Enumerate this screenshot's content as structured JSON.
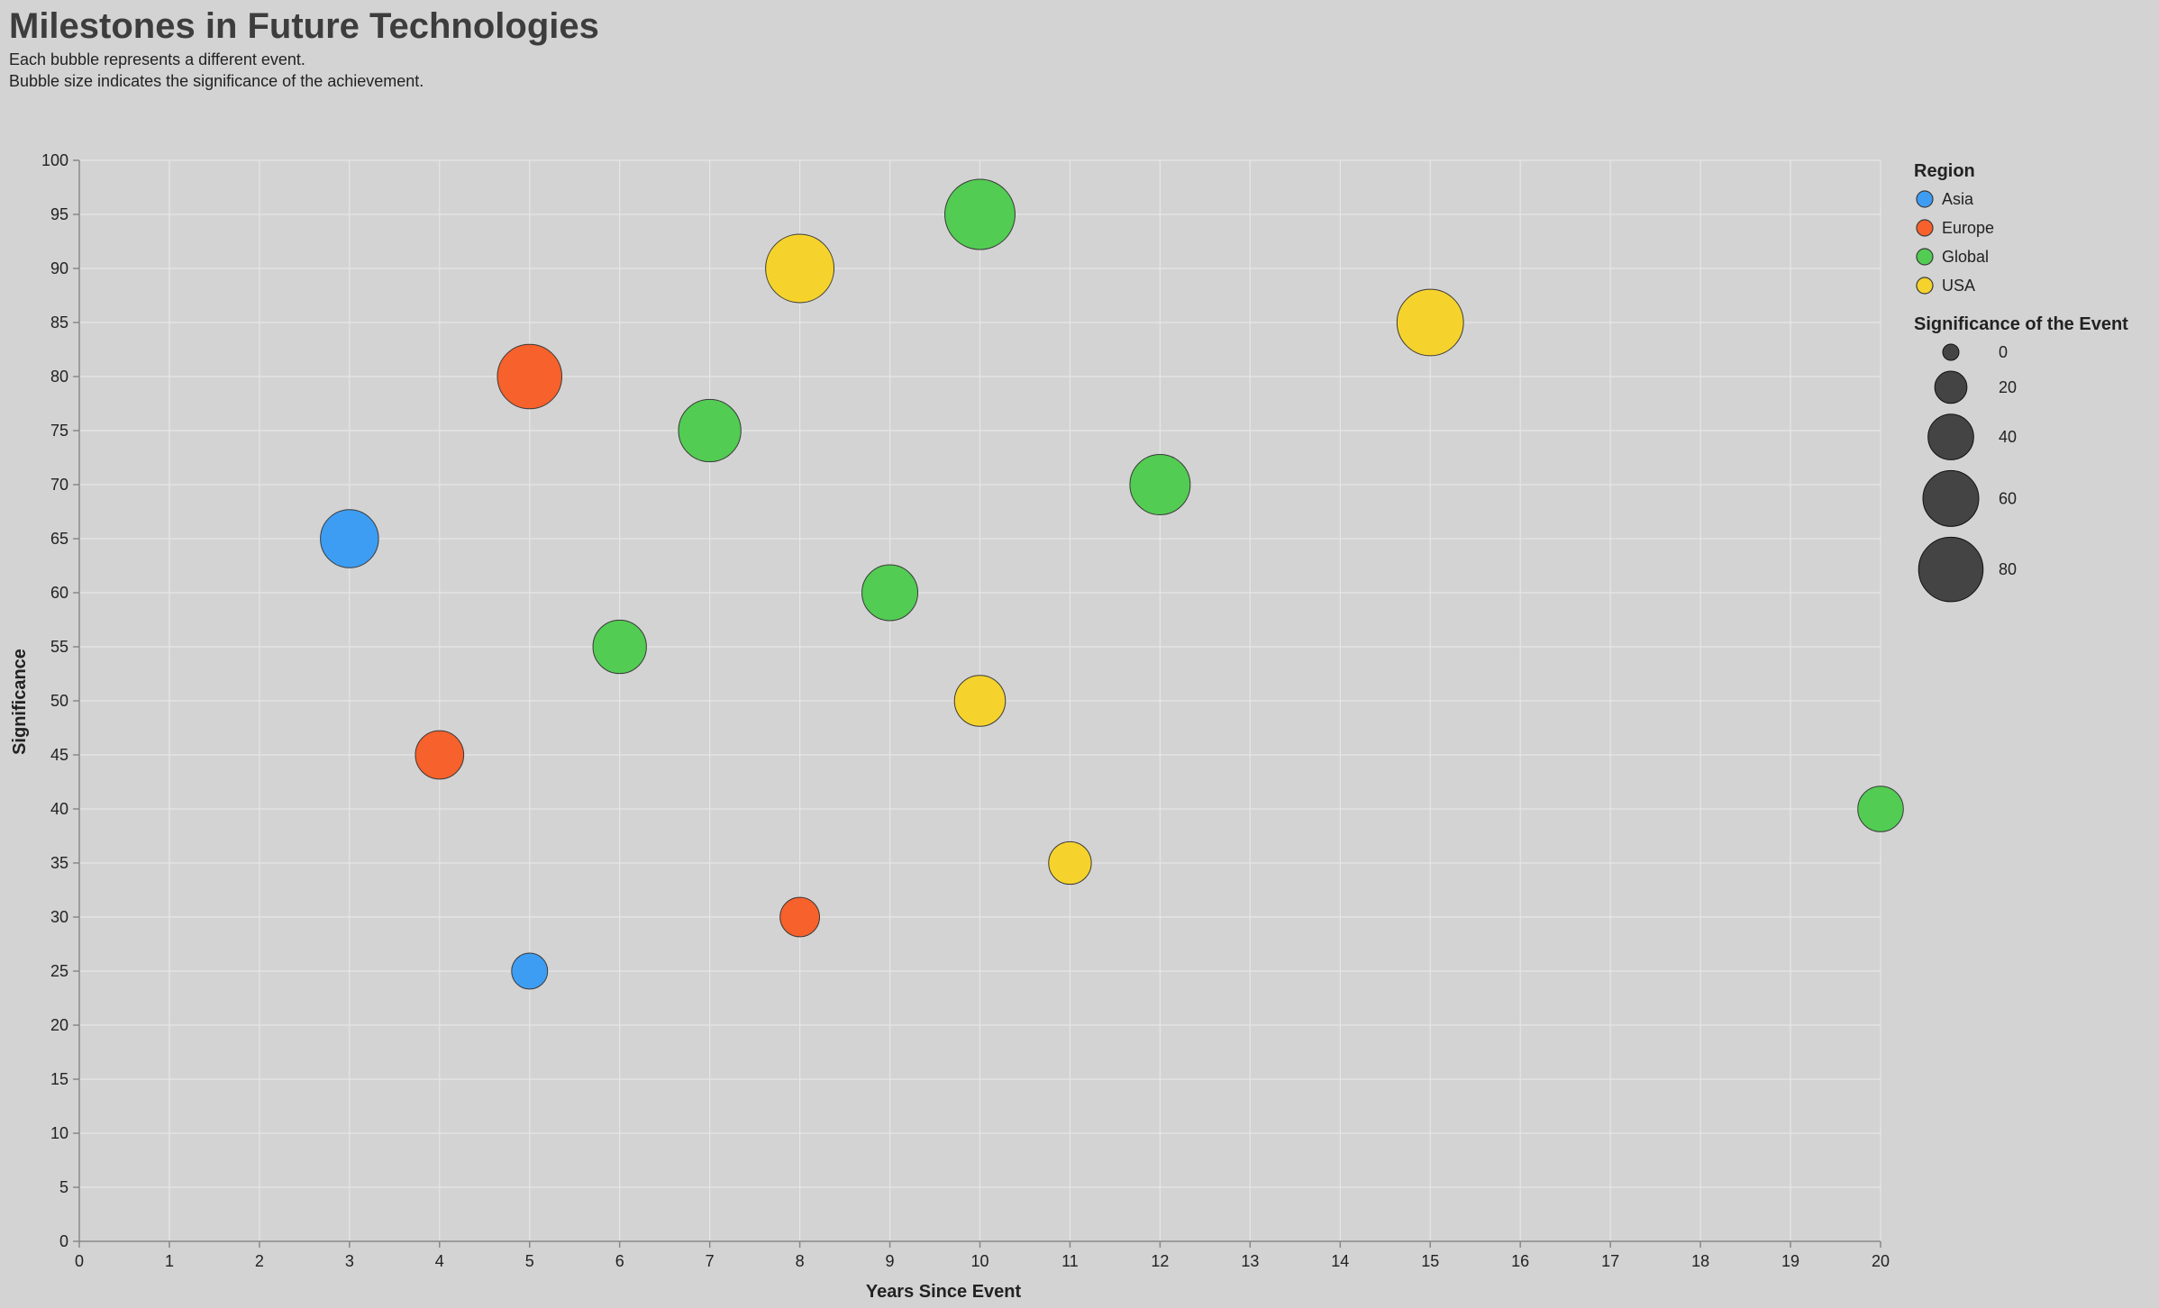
{
  "chart_data": {
    "type": "scatter",
    "title": "Milestones in Future Technologies",
    "subtitle": [
      "Each bubble represents a different event.",
      "Bubble size indicates the significance of the achievement."
    ],
    "xlabel": "Years Since Event",
    "ylabel": "Significance",
    "xlim": [
      0,
      20
    ],
    "ylim": [
      0,
      100
    ],
    "x_ticks": [
      0,
      1,
      2,
      3,
      4,
      5,
      6,
      7,
      8,
      9,
      10,
      11,
      12,
      13,
      14,
      15,
      16,
      17,
      18,
      19,
      20
    ],
    "y_ticks": [
      0,
      5,
      10,
      15,
      20,
      25,
      30,
      35,
      40,
      45,
      50,
      55,
      60,
      65,
      70,
      75,
      80,
      85,
      90,
      95,
      100
    ],
    "grid": true,
    "legend_placement": "top-right",
    "color_legend": {
      "title": "Region",
      "entries": [
        {
          "label": "Asia",
          "color": "#3d9df3"
        },
        {
          "label": "Europe",
          "color": "#f7612b"
        },
        {
          "label": "Global",
          "color": "#52cc52"
        },
        {
          "label": "USA",
          "color": "#f6d32c"
        }
      ]
    },
    "size_legend": {
      "title": "Significance of the Event",
      "values": [
        0,
        20,
        40,
        60,
        80
      ]
    },
    "points": [
      {
        "x": 3,
        "y": 65,
        "size": 65,
        "region": "Asia"
      },
      {
        "x": 5,
        "y": 25,
        "size": 25,
        "region": "Asia"
      },
      {
        "x": 5,
        "y": 80,
        "size": 80,
        "region": "Europe"
      },
      {
        "x": 4,
        "y": 45,
        "size": 45,
        "region": "Europe"
      },
      {
        "x": 8,
        "y": 30,
        "size": 30,
        "region": "Europe"
      },
      {
        "x": 10,
        "y": 95,
        "size": 95,
        "region": "Global"
      },
      {
        "x": 7,
        "y": 75,
        "size": 75,
        "region": "Global"
      },
      {
        "x": 12,
        "y": 70,
        "size": 70,
        "region": "Global"
      },
      {
        "x": 9,
        "y": 60,
        "size": 60,
        "region": "Global"
      },
      {
        "x": 6,
        "y": 55,
        "size": 55,
        "region": "Global"
      },
      {
        "x": 20,
        "y": 40,
        "size": 40,
        "region": "Global"
      },
      {
        "x": 8,
        "y": 90,
        "size": 90,
        "region": "USA"
      },
      {
        "x": 15,
        "y": 85,
        "size": 85,
        "region": "USA"
      },
      {
        "x": 10,
        "y": 50,
        "size": 50,
        "region": "USA"
      },
      {
        "x": 11,
        "y": 35,
        "size": 35,
        "region": "USA"
      }
    ]
  },
  "colors": {
    "background": "#d3d3d3",
    "grid": "#e6e6e6",
    "axis": "#888888",
    "bubble_stroke": "#3a3a3a",
    "size_legend_fill": "#444444"
  }
}
